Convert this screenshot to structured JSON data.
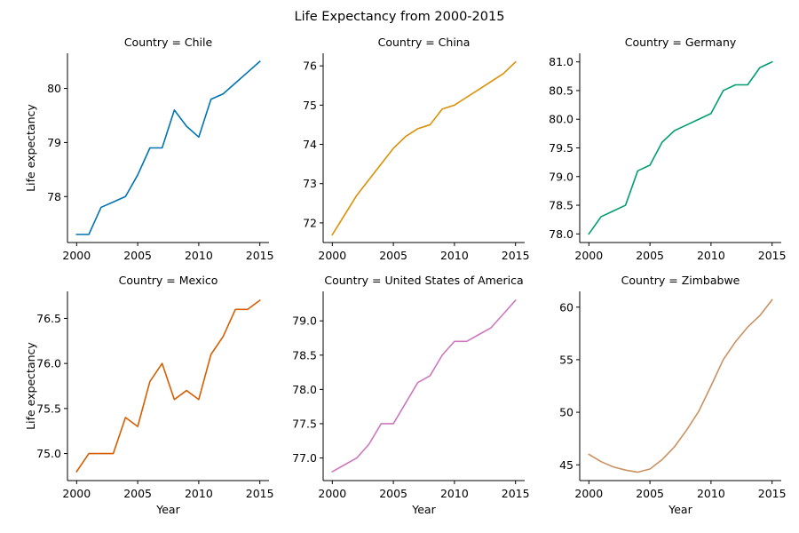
{
  "chart_data": {
    "type": "line",
    "title": "Life Expectancy from 2000-2015",
    "xlabel": "Year",
    "ylabel": "Life expectancy",
    "x": [
      2000,
      2001,
      2002,
      2003,
      2004,
      2005,
      2006,
      2007,
      2008,
      2009,
      2010,
      2011,
      2012,
      2013,
      2014,
      2015
    ],
    "xticks": [
      2000,
      2005,
      2010,
      2015
    ],
    "grid": false,
    "legend": "none",
    "panels": [
      {
        "title": "Country = Chile",
        "color": "#0173b2",
        "ylim": [
          77.15,
          80.65
        ],
        "yticks": [
          78,
          79,
          80
        ],
        "ytick_labels": [
          "78",
          "79",
          "80"
        ],
        "values": [
          77.3,
          77.3,
          77.8,
          77.9,
          78.0,
          78.4,
          78.9,
          78.9,
          79.6,
          79.3,
          79.1,
          79.8,
          79.9,
          80.1,
          80.3,
          80.5
        ]
      },
      {
        "title": "Country = China",
        "color": "#de8f05",
        "ylim": [
          71.5,
          76.32
        ],
        "yticks": [
          72,
          73,
          74,
          75,
          76
        ],
        "ytick_labels": [
          "72",
          "73",
          "74",
          "75",
          "76"
        ],
        "values": [
          71.7,
          72.2,
          72.7,
          73.1,
          73.5,
          73.9,
          74.2,
          74.4,
          74.5,
          74.9,
          75.0,
          75.2,
          75.4,
          75.6,
          75.8,
          76.1
        ]
      },
      {
        "title": "Country = Germany",
        "color": "#029e73",
        "ylim": [
          77.85,
          81.15
        ],
        "yticks": [
          78.0,
          78.5,
          79.0,
          79.5,
          80.0,
          80.5,
          81.0
        ],
        "ytick_labels": [
          "78.0",
          "78.5",
          "79.0",
          "79.5",
          "80.0",
          "80.5",
          "81.0"
        ],
        "values": [
          78.0,
          78.3,
          78.4,
          78.5,
          79.1,
          79.2,
          79.6,
          79.8,
          79.9,
          80.0,
          80.1,
          80.5,
          80.6,
          80.6,
          80.9,
          81.0
        ]
      },
      {
        "title": "Country = Mexico",
        "color": "#d55e00",
        "ylim": [
          74.7,
          76.8
        ],
        "yticks": [
          75.0,
          75.5,
          76.0,
          76.5
        ],
        "ytick_labels": [
          "75.0",
          "75.5",
          "76.0",
          "76.5"
        ],
        "values": [
          74.8,
          75.0,
          75.0,
          75.0,
          75.4,
          75.3,
          75.8,
          76.0,
          75.6,
          75.7,
          75.6,
          76.1,
          76.3,
          76.6,
          76.6,
          76.7
        ]
      },
      {
        "title": "Country = United States of America",
        "color": "#cc78bc",
        "ylim": [
          76.67,
          79.43
        ],
        "yticks": [
          77.0,
          77.5,
          78.0,
          78.5,
          79.0
        ],
        "ytick_labels": [
          "77.0",
          "77.5",
          "78.0",
          "78.5",
          "79.0"
        ],
        "values": [
          76.8,
          76.9,
          77.0,
          77.2,
          77.5,
          77.5,
          77.8,
          78.1,
          78.2,
          78.5,
          78.7,
          78.7,
          78.8,
          78.9,
          79.1,
          79.3
        ]
      },
      {
        "title": "Country = Zimbabwe",
        "color": "#ca9161",
        "ylim": [
          43.5,
          61.5
        ],
        "yticks": [
          45,
          50,
          55,
          60
        ],
        "ytick_labels": [
          "45",
          "50",
          "55",
          "60"
        ],
        "values": [
          46.0,
          45.3,
          44.8,
          44.5,
          44.3,
          44.6,
          45.5,
          46.7,
          48.3,
          50.1,
          52.5,
          55.0,
          56.7,
          58.1,
          59.2,
          60.7
        ]
      }
    ]
  }
}
